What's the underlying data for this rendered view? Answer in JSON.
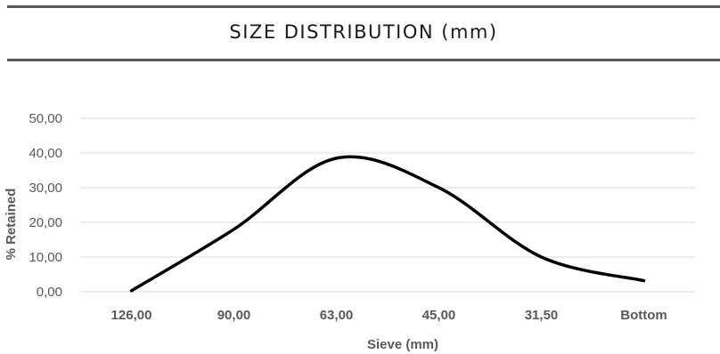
{
  "header": {
    "title": "SIZE DISTRIBUTION (mm)"
  },
  "chart_data": {
    "type": "line",
    "title": "",
    "xlabel": "Sieve (mm)",
    "ylabel": "% Retained",
    "categories": [
      "126,00",
      "90,00",
      "63,00",
      "45,00",
      "31,50",
      "Bottom"
    ],
    "values": [
      0.3,
      18.0,
      38.5,
      30.0,
      10.0,
      3.2
    ],
    "ylim": [
      0,
      50
    ],
    "yticks": [
      0,
      10,
      20,
      30,
      40,
      50
    ],
    "ytick_labels": [
      "0,00",
      "10,00",
      "20,00",
      "30,00",
      "40,00",
      "50,00"
    ],
    "smooth": true,
    "grid": true,
    "legend": "none",
    "line_color": "#000000",
    "grid_color": "#d9d9d9"
  }
}
